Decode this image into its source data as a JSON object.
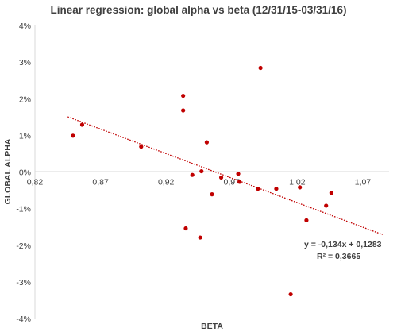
{
  "chart_data": {
    "type": "scatter",
    "title": "Linear regression: global alpha vs beta (12/31/15-03/31/16)",
    "xlabel": "BETA",
    "ylabel": "GLOBAL ALPHA",
    "xlim": [
      0.82,
      1.09
    ],
    "ylim": [
      -4,
      4
    ],
    "x_ticks": [
      "0,82",
      "0,87",
      "0,92",
      "0,97",
      "1,02",
      "1,07"
    ],
    "x_tick_values": [
      0.82,
      0.87,
      0.92,
      0.97,
      1.02,
      1.07
    ],
    "y_ticks": [
      "4%",
      "3%",
      "2%",
      "1%",
      "0%",
      "-1%",
      "-2%",
      "-3%",
      "-4%"
    ],
    "y_tick_values": [
      4,
      3,
      2,
      1,
      0,
      -1,
      -2,
      -3,
      -4
    ],
    "grid": false,
    "point_color": "#c00000",
    "trend_color": "#c00000",
    "points": [
      {
        "x": 0.849,
        "y": 0.99
      },
      {
        "x": 0.856,
        "y": 1.29
      },
      {
        "x": 0.901,
        "y": 0.69
      },
      {
        "x": 0.933,
        "y": 2.08
      },
      {
        "x": 0.933,
        "y": 1.68
      },
      {
        "x": 0.935,
        "y": -1.54
      },
      {
        "x": 0.94,
        "y": -0.08
      },
      {
        "x": 0.946,
        "y": -1.79
      },
      {
        "x": 0.947,
        "y": 0.02
      },
      {
        "x": 0.951,
        "y": 0.81
      },
      {
        "x": 0.955,
        "y": -0.61
      },
      {
        "x": 0.962,
        "y": -0.15
      },
      {
        "x": 0.975,
        "y": -0.05
      },
      {
        "x": 0.976,
        "y": -0.27
      },
      {
        "x": 0.99,
        "y": -0.46
      },
      {
        "x": 0.992,
        "y": 2.84
      },
      {
        "x": 1.004,
        "y": -0.46
      },
      {
        "x": 1.015,
        "y": -3.34
      },
      {
        "x": 1.022,
        "y": -0.42
      },
      {
        "x": 1.027,
        "y": -1.32
      },
      {
        "x": 1.042,
        "y": -0.92
      },
      {
        "x": 1.046,
        "y": -0.57
      }
    ],
    "trendline": {
      "slope": -0.134,
      "intercept": 0.1283,
      "x_range": [
        0.845,
        1.085
      ],
      "equation": "y = -0,134x + 0,1283",
      "r_squared": "R² = 0,3665"
    }
  }
}
